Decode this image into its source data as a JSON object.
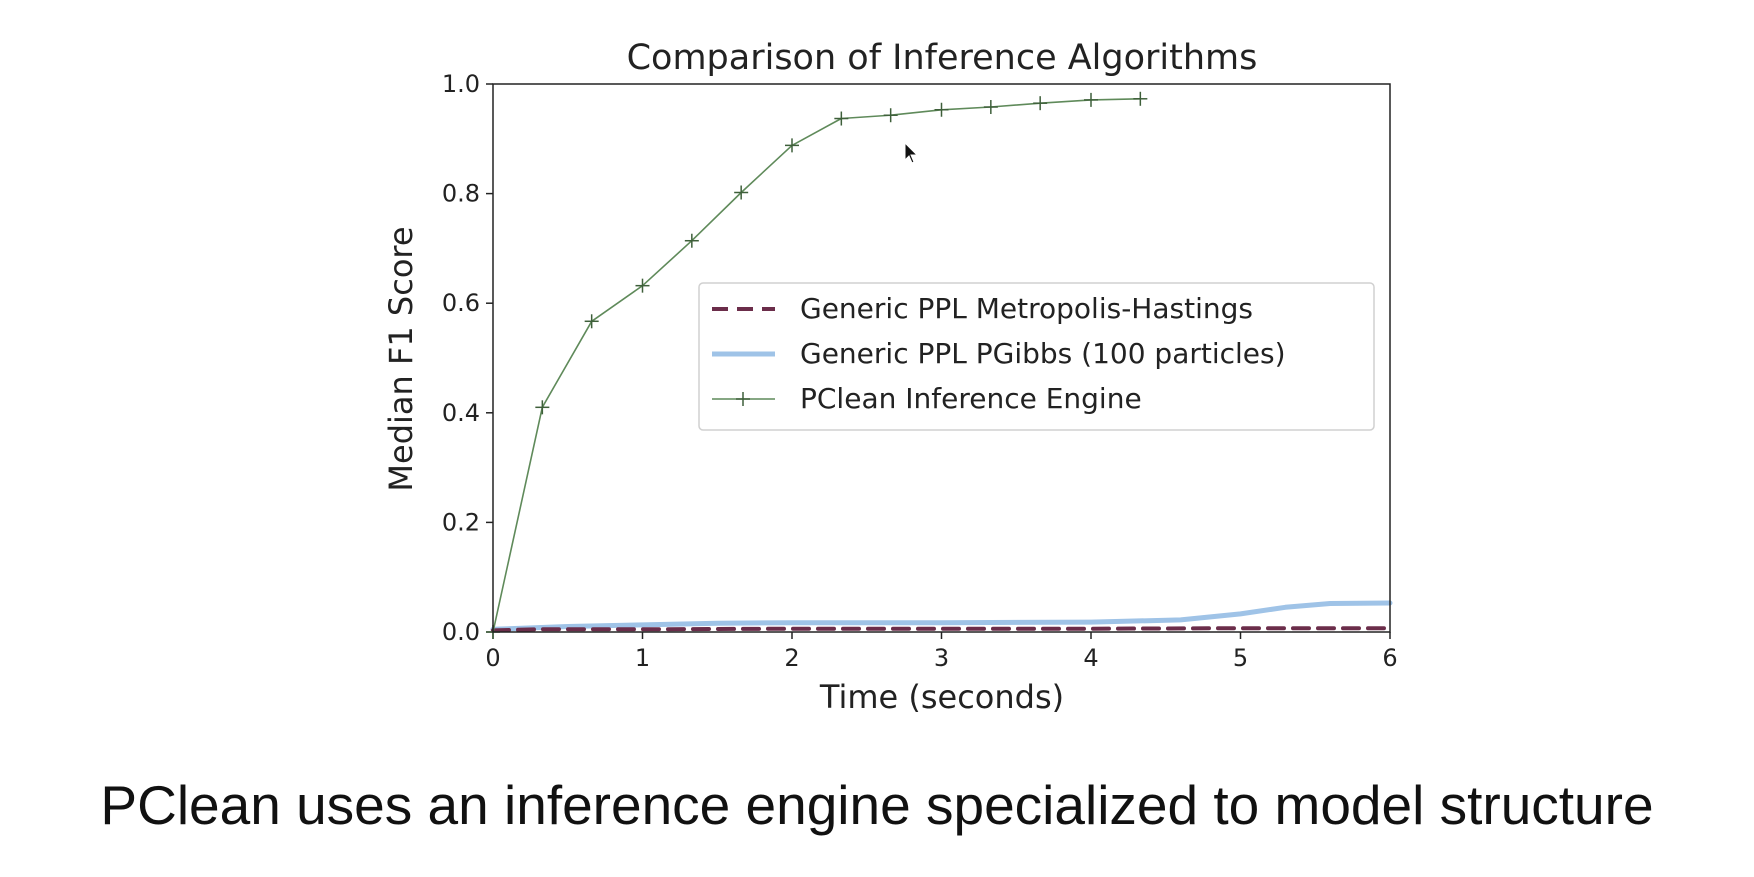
{
  "chart_data": {
    "type": "line",
    "title": "Comparison of Inference Algorithms",
    "xlabel": "Time (seconds)",
    "ylabel": "Median F1 Score",
    "xlim": [
      0,
      6
    ],
    "ylim": [
      0,
      1.0
    ],
    "xticks": [
      0,
      1,
      2,
      3,
      4,
      5,
      6
    ],
    "xtick_labels": [
      "0",
      "1",
      "2",
      "3",
      "4",
      "5",
      "6"
    ],
    "yticks": [
      0,
      0.2,
      0.4,
      0.6,
      0.8,
      1.0
    ],
    "ytick_labels": [
      "0.0",
      "0.2",
      "0.4",
      "0.6",
      "0.8",
      "1.0"
    ],
    "grid": false,
    "legend_position": "center-right",
    "series": [
      {
        "name": "Generic PPL Metropolis-Hastings",
        "color": "#6b2d4a",
        "style": "dashed",
        "x": [
          0,
          0.3,
          1,
          2,
          3,
          4,
          5,
          6
        ],
        "y": [
          0.003,
          0.005,
          0.005,
          0.006,
          0.006,
          0.006,
          0.007,
          0.007
        ]
      },
      {
        "name": "Generic PPL PGibbs (100 particles)",
        "color": "#9fc3e7",
        "style": "solid-thick",
        "x": [
          0,
          0.5,
          1,
          1.5,
          2,
          3,
          4,
          4.6,
          5,
          5.3,
          5.6,
          6
        ],
        "y": [
          0.005,
          0.01,
          0.013,
          0.016,
          0.017,
          0.017,
          0.018,
          0.022,
          0.033,
          0.045,
          0.052,
          0.053
        ]
      },
      {
        "name": "PClean Inference Engine",
        "color": "#5f8a5a",
        "style": "solid-plus",
        "x": [
          0,
          0.33,
          0.66,
          1.0,
          1.33,
          1.66,
          2.0,
          2.33,
          2.66,
          3.0,
          3.33,
          3.66,
          4.0,
          4.33
        ],
        "y": [
          0.0,
          0.41,
          0.567,
          0.632,
          0.714,
          0.802,
          0.888,
          0.937,
          0.943,
          0.953,
          0.958,
          0.965,
          0.971,
          0.973
        ]
      }
    ]
  },
  "caption": "PClean uses an inference engine specialized to model structure"
}
